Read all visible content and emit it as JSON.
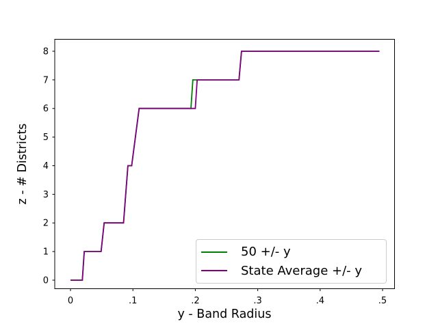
{
  "chart_data": {
    "type": "line",
    "style": "step-like thresholds, matplotlib default look",
    "title": "",
    "xlabel": "y - Band Radius",
    "ylabel": "z - # Districts",
    "xlim": [
      -0.02522,
      0.51919
    ],
    "ylim": [
      -0.29851,
      8.41791
    ],
    "grid": false,
    "background_color": "#ffffff",
    "spine_color": "#000000",
    "xticks": {
      "values": [
        0,
        0.1,
        0.2,
        0.3,
        0.4,
        0.5
      ],
      "labels": [
        "0",
        ".1",
        ".2",
        ".3",
        ".4",
        ".5"
      ]
    },
    "yticks": {
      "values": [
        0,
        1,
        2,
        3,
        4,
        5,
        6,
        7,
        8
      ],
      "labels": [
        "0",
        "1",
        "2",
        "3",
        "4",
        "5",
        "6",
        "7",
        "8"
      ]
    },
    "legend": {
      "position": "lower right inside axes",
      "border_color": "#cccccc"
    },
    "series": [
      {
        "name": "50 +/- y",
        "color": "#008000",
        "points": [
          [
            0,
            0
          ],
          [
            0.019,
            0
          ],
          [
            0.022,
            1
          ],
          [
            0.049,
            1
          ],
          [
            0.054,
            2
          ],
          [
            0.085,
            2
          ],
          [
            0.092,
            4
          ],
          [
            0.098,
            4
          ],
          [
            0.11,
            6
          ],
          [
            0.193,
            6
          ],
          [
            0.196,
            7
          ],
          [
            0.27,
            7
          ],
          [
            0.274,
            8
          ],
          [
            0.495,
            8
          ]
        ]
      },
      {
        "name": "State Average +/- y",
        "color": "#800080",
        "points": [
          [
            0,
            0
          ],
          [
            0.019,
            0
          ],
          [
            0.022,
            1
          ],
          [
            0.049,
            1
          ],
          [
            0.054,
            2
          ],
          [
            0.085,
            2
          ],
          [
            0.092,
            4
          ],
          [
            0.098,
            4
          ],
          [
            0.11,
            6
          ],
          [
            0.2,
            6
          ],
          [
            0.203,
            7
          ],
          [
            0.27,
            7
          ],
          [
            0.274,
            8
          ],
          [
            0.495,
            8
          ]
        ]
      }
    ]
  }
}
